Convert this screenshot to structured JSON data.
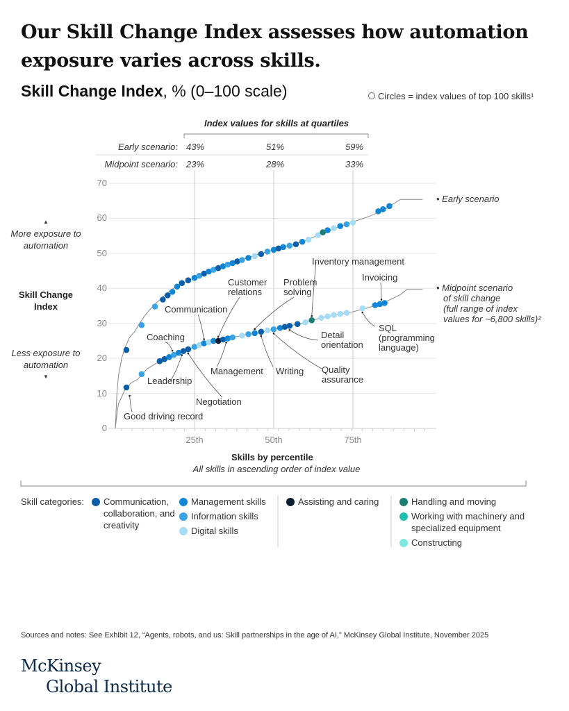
{
  "header": {
    "title_line1": "Our Skill Change Index assesses how automation",
    "title_line2": "exposure varies across skills.",
    "subtitle_bold": "Skill Change Index",
    "subtitle_rest": ", % (0–100 scale)",
    "circles_note": "Circles = index values of top 100 skills¹"
  },
  "quartile_table": {
    "heading": "Index values for skills at quartiles",
    "rows": [
      {
        "label": "Early scenario:",
        "values": [
          "43%",
          "51%",
          "59%"
        ]
      },
      {
        "label": "Midpoint scenario:",
        "values": [
          "23%",
          "28%",
          "33%"
        ]
      }
    ]
  },
  "side_labels": {
    "more": "More exposure to automation",
    "axis": "Skill Change Index",
    "less": "Less exposure to automation"
  },
  "chart_data": {
    "type": "scatter",
    "xlabel": "Skills by percentile",
    "xlabel_sub": "All skills in ascending order of index value",
    "ylabel": "Skill Change Index",
    "xlim": [
      0,
      100
    ],
    "ylim": [
      0,
      70
    ],
    "x_ticks": [
      "25th",
      "50th",
      "75th"
    ],
    "x_tick_values": [
      25,
      50,
      75
    ],
    "y_ticks": [
      "0",
      "10",
      "20",
      "30",
      "40",
      "50",
      "60",
      "70"
    ],
    "y_tick_values": [
      0,
      10,
      20,
      30,
      40,
      50,
      60,
      70
    ],
    "grid": true,
    "series": [
      {
        "name": "Early scenario",
        "line": [
          [
            0,
            0
          ],
          [
            0.5,
            10
          ],
          [
            1,
            15
          ],
          [
            2,
            20
          ],
          [
            3,
            23
          ],
          [
            4.5,
            26
          ],
          [
            6,
            27.5
          ],
          [
            8,
            30.5
          ],
          [
            10,
            33
          ],
          [
            12.5,
            35.5
          ],
          [
            15,
            37.5
          ],
          [
            17.5,
            39.5
          ],
          [
            20,
            41
          ],
          [
            25,
            43
          ],
          [
            30,
            45
          ],
          [
            35,
            46.8
          ],
          [
            40,
            48.2
          ],
          [
            45,
            49.7
          ],
          [
            50,
            51
          ],
          [
            55,
            52.3
          ],
          [
            60,
            53.6
          ],
          [
            65,
            55.6
          ],
          [
            70,
            57.4
          ],
          [
            75,
            59
          ],
          [
            80,
            60.5
          ],
          [
            85,
            62.5
          ],
          [
            90,
            65.4
          ],
          [
            97,
            65.4
          ]
        ],
        "points": [
          [
            3.5,
            22.4,
            "c"
          ],
          [
            8.3,
            29.5,
            "i"
          ],
          [
            12.5,
            34.8,
            "i"
          ],
          [
            15,
            36.8,
            "c"
          ],
          [
            16.5,
            38,
            "c"
          ],
          [
            18,
            39,
            "m"
          ],
          [
            19.5,
            40.5,
            "m"
          ],
          [
            21,
            41.5,
            "c"
          ],
          [
            23,
            42.3,
            "c"
          ],
          [
            25,
            43,
            "m"
          ],
          [
            26.5,
            43.6,
            "i"
          ],
          [
            28,
            44.2,
            "c"
          ],
          [
            29.5,
            44.8,
            "m"
          ],
          [
            31,
            45.3,
            "i"
          ],
          [
            32.5,
            45.8,
            "c"
          ],
          [
            34,
            46.3,
            "m"
          ],
          [
            35.5,
            46.8,
            "i"
          ],
          [
            37,
            47.2,
            "m"
          ],
          [
            38.5,
            47.7,
            "c"
          ],
          [
            40,
            48.1,
            "i"
          ],
          [
            42,
            48.7,
            "m"
          ],
          [
            44,
            49.2,
            "d"
          ],
          [
            46,
            49.8,
            "c"
          ],
          [
            48,
            50.5,
            "i"
          ],
          [
            50,
            51,
            "m"
          ],
          [
            51.5,
            51.4,
            "c"
          ],
          [
            53,
            51.8,
            "m"
          ],
          [
            55,
            52.2,
            "i"
          ],
          [
            57,
            52.6,
            "c"
          ],
          [
            59,
            53.3,
            "m"
          ],
          [
            61,
            53.9,
            "d"
          ],
          [
            64,
            55.2,
            "d"
          ],
          [
            65.5,
            56,
            "h"
          ],
          [
            67,
            56.6,
            "m"
          ],
          [
            69,
            57.2,
            "d"
          ],
          [
            71,
            57.8,
            "m"
          ],
          [
            73,
            58.3,
            "i"
          ],
          [
            75,
            58.8,
            "d"
          ],
          [
            83,
            62,
            "m"
          ],
          [
            84.5,
            62.6,
            "m"
          ],
          [
            86.5,
            63.5,
            "m"
          ]
        ]
      },
      {
        "name": "Midpoint scenario of skill change (full range of index values for ~6,800 skills)²",
        "line": [
          [
            0,
            0
          ],
          [
            0.5,
            4
          ],
          [
            1,
            7
          ],
          [
            2,
            9
          ],
          [
            3,
            11
          ],
          [
            5,
            13
          ],
          [
            7,
            14
          ],
          [
            10,
            17
          ],
          [
            15,
            19.7
          ],
          [
            20,
            21.6
          ],
          [
            25,
            23.3
          ],
          [
            30,
            24.7
          ],
          [
            35,
            25.7
          ],
          [
            40,
            26.5
          ],
          [
            45,
            27.3
          ],
          [
            50,
            28.3
          ],
          [
            55,
            29.3
          ],
          [
            60,
            30.3
          ],
          [
            65,
            31.6
          ],
          [
            70,
            32.5
          ],
          [
            75,
            33.3
          ],
          [
            80,
            34.5
          ],
          [
            85,
            36
          ],
          [
            90,
            38.2
          ],
          [
            92,
            39.7
          ],
          [
            97,
            39.7
          ]
        ],
        "points": [
          [
            3.5,
            11.7,
            "c"
          ],
          [
            8.3,
            15.5,
            "i"
          ],
          [
            14,
            19.2,
            "c"
          ],
          [
            15.5,
            19.8,
            "c"
          ],
          [
            17,
            20.4,
            "m"
          ],
          [
            18.5,
            21,
            "i"
          ],
          [
            20,
            21.6,
            "m"
          ],
          [
            21.5,
            22.1,
            "c"
          ],
          [
            23,
            22.6,
            "c"
          ],
          [
            25,
            23.3,
            "i"
          ],
          [
            26.5,
            23.8,
            "d"
          ],
          [
            28,
            24.3,
            "m"
          ],
          [
            29.5,
            24.6,
            "d"
          ],
          [
            31,
            25,
            "m"
          ],
          [
            32.5,
            25,
            "a"
          ],
          [
            34,
            25.4,
            "c"
          ],
          [
            35.5,
            25.7,
            "m"
          ],
          [
            37,
            26,
            "i"
          ],
          [
            40,
            26.5,
            "d"
          ],
          [
            42,
            26.9,
            "i"
          ],
          [
            44,
            27.2,
            "m"
          ],
          [
            46,
            27.6,
            "c"
          ],
          [
            48,
            28,
            "d"
          ],
          [
            50,
            28.3,
            "i"
          ],
          [
            52,
            28.7,
            "m"
          ],
          [
            53.5,
            29,
            "c"
          ],
          [
            55,
            29.3,
            "c"
          ],
          [
            57.5,
            29.8,
            "c"
          ],
          [
            60,
            30.3,
            "d"
          ],
          [
            62,
            30.9,
            "h"
          ],
          [
            65,
            31.6,
            "d"
          ],
          [
            67,
            32,
            "d"
          ],
          [
            69,
            32.4,
            "d"
          ],
          [
            71,
            32.7,
            "d"
          ],
          [
            73,
            33,
            "d"
          ],
          [
            78,
            34.3,
            "d"
          ],
          [
            82,
            35.2,
            "m"
          ],
          [
            83.5,
            35.5,
            "m"
          ],
          [
            85,
            35.8,
            "m"
          ]
        ]
      }
    ],
    "series_labels": {
      "early": "Early scenario",
      "midpoint": [
        "Midpoint scenario",
        "of skill change",
        "(full range of index",
        "values for ~6,800 skills)²"
      ]
    },
    "annotations": [
      {
        "text": [
          "Inventory management"
        ],
        "pct": 62,
        "value": 30.9
      },
      {
        "text": [
          "Invoicing"
        ],
        "pct": 84,
        "value": 35.6
      },
      {
        "text": [
          "Customer",
          "relations"
        ],
        "pct": 32.5,
        "value": 25
      },
      {
        "text": [
          "Problem",
          "solving"
        ],
        "pct": 44,
        "value": 27.2
      },
      {
        "text": [
          "Communication"
        ],
        "pct": 28,
        "value": 24.3
      },
      {
        "text": [
          "Coaching"
        ],
        "pct": 18,
        "value": 21
      },
      {
        "text": [
          "Detail",
          "orientation"
        ],
        "pct": 55,
        "value": 29.3
      },
      {
        "text": [
          "SQL",
          "(programming",
          "language)"
        ],
        "pct": 78,
        "value": 34.3
      },
      {
        "text": [
          "Leadership"
        ],
        "pct": 21,
        "value": 22.1
      },
      {
        "text": [
          "Management"
        ],
        "pct": 35,
        "value": 25.7
      },
      {
        "text": [
          "Writing"
        ],
        "pct": 46,
        "value": 27.6
      },
      {
        "text": [
          "Quality",
          "assurance"
        ],
        "pct": 50,
        "value": 28.3
      },
      {
        "text": [
          "Negotiation"
        ],
        "pct": 23,
        "value": 22.6
      },
      {
        "text": [
          "Good driving record"
        ],
        "pct": 4.5,
        "value": 10.5
      }
    ]
  },
  "legend": {
    "label": "Skill categories:",
    "items": [
      {
        "key": "c",
        "label": "Communication, collaboration, and creativity",
        "color": "#0b5ea8"
      },
      {
        "key": "m",
        "label": "Management skills",
        "color": "#1186d4"
      },
      {
        "key": "i",
        "label": "Information skills",
        "color": "#3aa3e3"
      },
      {
        "key": "d",
        "label": "Digital skills",
        "color": "#a6dcf5"
      },
      {
        "key": "a",
        "label": "Assisting and caring",
        "color": "#0b1f33"
      },
      {
        "key": "h",
        "label": "Handling and moving",
        "color": "#1a7f72"
      },
      {
        "key": "w",
        "label": "Working with machinery and specialized equipment",
        "color": "#1fbfae"
      },
      {
        "key": "k",
        "label": "Constructing",
        "color": "#7ee8e0"
      }
    ]
  },
  "footer": {
    "sources": "Sources and notes: See Exhibit 12, “Agents, robots, and us: Skill partnerships in the age of AI,” McKinsey Global Institute, November 2025",
    "logo_line1": "McKinsey",
    "logo_line2": "Global Institute"
  }
}
